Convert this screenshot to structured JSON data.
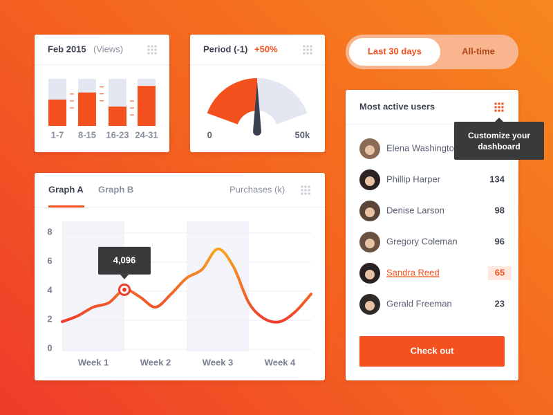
{
  "toggle": {
    "options": [
      "Last 30 days",
      "All-time"
    ],
    "active": 0
  },
  "chart_data": [
    {
      "type": "bar",
      "title": "Feb 2015",
      "subtitle": "(Views)",
      "categories": [
        "1-7",
        "8-15",
        "16-23",
        "24-31"
      ],
      "values": [
        56,
        71,
        41,
        85
      ],
      "ylim": [
        0,
        100
      ],
      "color": "#f4511e",
      "track_color": "#e3e7f1"
    },
    {
      "type": "gauge",
      "title": "Period (-1)",
      "annotation": "+50%",
      "value": 25000,
      "xlim": [
        0,
        50000
      ],
      "xticks": [
        0,
        {
          "value": 50000,
          "label": "50k"
        }
      ],
      "color": "#f4511e",
      "track_color": "#e3e7f1"
    },
    {
      "type": "line",
      "tabs": [
        "Graph A",
        "Graph B"
      ],
      "active_tab": 0,
      "title": "Purchases (k)",
      "x": [
        0,
        0.25,
        0.5,
        0.75,
        1,
        1.25,
        1.5,
        1.75,
        2,
        2.25,
        2.5,
        2.75,
        3,
        3.25,
        3.5,
        3.75,
        4
      ],
      "xlim": [
        0,
        4
      ],
      "xticks": [
        {
          "value": 0.5,
          "label": "Week 1"
        },
        {
          "value": 1.5,
          "label": "Week 2"
        },
        {
          "value": 2.5,
          "label": "Week 3"
        },
        {
          "value": 3.5,
          "label": "Week 4"
        }
      ],
      "ylim": [
        0,
        8.8
      ],
      "yticks": [
        0,
        2,
        4,
        6,
        8
      ],
      "grid": true,
      "series": [
        {
          "values": [
            1.9,
            2.3,
            2.9,
            3.2,
            4.096,
            3.6,
            2.9,
            3.8,
            4.9,
            5.5,
            6.9,
            5.7,
            3.2,
            2.1,
            1.9,
            2.6,
            3.8
          ],
          "value_labels": [
            null,
            null,
            null,
            null,
            "4,096",
            null,
            null,
            null,
            null,
            null,
            null,
            null,
            null,
            null,
            null,
            null,
            null
          ],
          "gradient": [
            "#ee3a2c",
            "#f6a623"
          ]
        }
      ]
    }
  ],
  "users": {
    "title": "Most active users",
    "tooltip": "Customize your dashboard",
    "rows": [
      {
        "name": "Elena Washington"
      },
      {
        "name": "Phillip Harper",
        "value": 134
      },
      {
        "name": "Denise Larson",
        "value": 98
      },
      {
        "name": "Gregory Coleman",
        "value": 96
      },
      {
        "name": "Sandra Reed",
        "value": 65
      },
      {
        "name": "Gerald Freeman",
        "value": 23
      }
    ],
    "highlighted": 4,
    "button": "Check out"
  }
}
